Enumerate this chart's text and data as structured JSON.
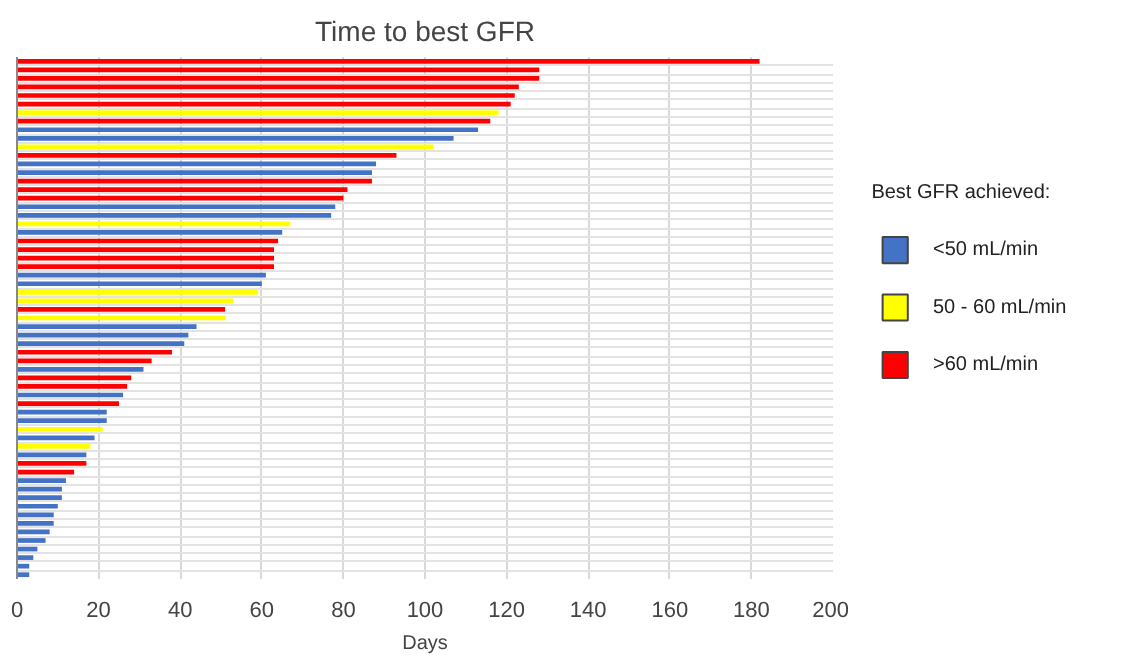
{
  "chart_data": {
    "type": "bar",
    "orientation": "horizontal",
    "title": "Time to best GFR",
    "xlabel": "Days",
    "legend_title": "Best GFR achieved:",
    "legend": "right",
    "grid": true,
    "tick_labels": "x",
    "categories": [
      null,
      null,
      null,
      null,
      null,
      null,
      null,
      null,
      null,
      null,
      null,
      null,
      null,
      null,
      null,
      null,
      null,
      null,
      null,
      null,
      null,
      null,
      null,
      null,
      null,
      null,
      null,
      null,
      null,
      null,
      null,
      null,
      null,
      null,
      null,
      null,
      null,
      null,
      null,
      null,
      null,
      null,
      null,
      null,
      null,
      null,
      null,
      null,
      null,
      null,
      null,
      null,
      null,
      null,
      null,
      null,
      null,
      null,
      null,
      null,
      null
    ],
    "xlim": [
      0,
      200
    ],
    "xticks": [
      0,
      20,
      40,
      60,
      80,
      100,
      120,
      140,
      160,
      180,
      200
    ],
    "series": [
      {
        "name": "<50 mL/min",
        "color": "#4472c4",
        "values": [
          null,
          null,
          null,
          null,
          null,
          null,
          null,
          null,
          113,
          107,
          null,
          null,
          88,
          87,
          null,
          null,
          null,
          78,
          77,
          null,
          65,
          null,
          null,
          null,
          null,
          61,
          60,
          null,
          null,
          null,
          null,
          44,
          42,
          41,
          null,
          null,
          31,
          null,
          null,
          26,
          null,
          22,
          22,
          null,
          19,
          null,
          17,
          null,
          null,
          12,
          11,
          11,
          10,
          9,
          9,
          8,
          7,
          5,
          4,
          3,
          3
        ]
      },
      {
        "name": "50 - 60  mL/min",
        "color": "#ffff00",
        "values": [
          null,
          null,
          null,
          null,
          null,
          null,
          118,
          null,
          null,
          null,
          102,
          null,
          null,
          null,
          null,
          null,
          null,
          null,
          null,
          67,
          null,
          null,
          null,
          null,
          null,
          null,
          null,
          59,
          53,
          null,
          51,
          null,
          null,
          null,
          null,
          null,
          null,
          null,
          null,
          null,
          null,
          null,
          null,
          21,
          null,
          18,
          null,
          null,
          null,
          null,
          null,
          null,
          null,
          null,
          null,
          null,
          null,
          null,
          null,
          null,
          null
        ]
      },
      {
        "name": ">60 mL/min",
        "color": "#ff0000",
        "values": [
          182,
          128,
          128,
          123,
          122,
          121,
          null,
          116,
          null,
          null,
          null,
          93,
          null,
          null,
          87,
          81,
          80,
          null,
          null,
          null,
          null,
          64,
          63,
          63,
          63,
          null,
          null,
          null,
          null,
          51,
          null,
          null,
          null,
          null,
          38,
          33,
          null,
          28,
          27,
          null,
          25,
          null,
          null,
          null,
          null,
          null,
          null,
          17,
          14,
          null,
          null,
          null,
          null,
          null,
          null,
          null,
          null,
          null,
          null,
          null,
          null
        ]
      }
    ]
  }
}
